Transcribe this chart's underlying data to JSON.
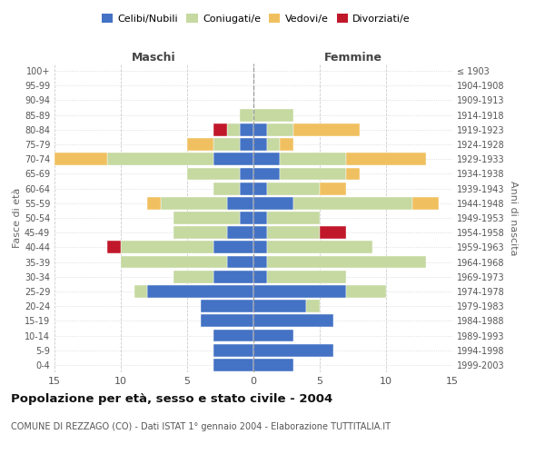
{
  "age_groups": [
    "0-4",
    "5-9",
    "10-14",
    "15-19",
    "20-24",
    "25-29",
    "30-34",
    "35-39",
    "40-44",
    "45-49",
    "50-54",
    "55-59",
    "60-64",
    "65-69",
    "70-74",
    "75-79",
    "80-84",
    "85-89",
    "90-94",
    "95-99",
    "100+"
  ],
  "birth_years": [
    "1999-2003",
    "1994-1998",
    "1989-1993",
    "1984-1988",
    "1979-1983",
    "1974-1978",
    "1969-1973",
    "1964-1968",
    "1959-1963",
    "1954-1958",
    "1949-1953",
    "1944-1948",
    "1939-1943",
    "1934-1938",
    "1929-1933",
    "1924-1928",
    "1919-1923",
    "1914-1918",
    "1909-1913",
    "1904-1908",
    "≤ 1903"
  ],
  "colors": {
    "celibi": "#4472C4",
    "coniugati": "#c5d9a0",
    "vedovi": "#f0c060",
    "divorziati": "#c0182a"
  },
  "maschi": {
    "celibi": [
      3,
      3,
      3,
      4,
      4,
      8,
      3,
      2,
      3,
      2,
      1,
      2,
      1,
      1,
      3,
      1,
      1,
      0,
      0,
      0,
      0
    ],
    "coniugati": [
      0,
      0,
      0,
      0,
      0,
      1,
      3,
      8,
      7,
      4,
      5,
      5,
      2,
      4,
      8,
      2,
      1,
      1,
      0,
      0,
      0
    ],
    "vedovi": [
      0,
      0,
      0,
      0,
      0,
      0,
      0,
      0,
      0,
      0,
      0,
      1,
      0,
      0,
      4,
      2,
      0,
      0,
      0,
      0,
      0
    ],
    "divorziati": [
      0,
      0,
      0,
      0,
      0,
      0,
      0,
      0,
      1,
      0,
      0,
      0,
      0,
      0,
      0,
      0,
      1,
      0,
      0,
      0,
      0
    ]
  },
  "femmine": {
    "celibi": [
      3,
      6,
      3,
      6,
      4,
      7,
      1,
      1,
      1,
      1,
      1,
      3,
      1,
      2,
      2,
      1,
      1,
      0,
      0,
      0,
      0
    ],
    "coniugati": [
      0,
      0,
      0,
      0,
      1,
      3,
      6,
      12,
      8,
      4,
      4,
      9,
      4,
      5,
      5,
      1,
      2,
      3,
      0,
      0,
      0
    ],
    "vedovi": [
      0,
      0,
      0,
      0,
      0,
      0,
      0,
      0,
      0,
      0,
      0,
      2,
      2,
      1,
      6,
      1,
      5,
      0,
      0,
      0,
      0
    ],
    "divorziati": [
      0,
      0,
      0,
      0,
      0,
      0,
      0,
      0,
      0,
      2,
      0,
      0,
      0,
      0,
      0,
      0,
      0,
      0,
      0,
      0,
      0
    ]
  },
  "xlim": 15,
  "title": "Popolazione per età, sesso e stato civile - 2004",
  "subtitle": "COMUNE DI REZZAGO (CO) - Dati ISTAT 1° gennaio 2004 - Elaborazione TUTTITALIA.IT",
  "ylabel_left": "Fasce di età",
  "ylabel_right": "Anni di nascita",
  "xlabel_left": "Maschi",
  "xlabel_right": "Femmine"
}
